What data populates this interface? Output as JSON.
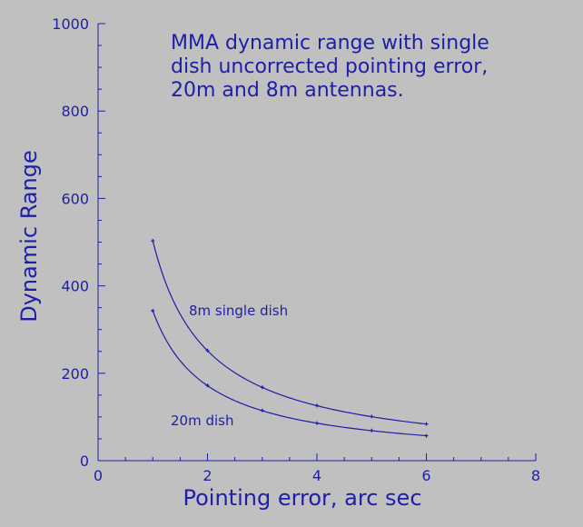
{
  "chart_data": {
    "type": "line",
    "title_lines": [
      "MMA dynamic range with single",
      "dish uncorrected pointing error,",
      "20m and 8m antennas."
    ],
    "xlabel": "Pointing error, arc sec",
    "ylabel": "Dynamic Range",
    "xlim": [
      0,
      8
    ],
    "ylim": [
      0,
      1000
    ],
    "x_ticks": [
      0,
      2,
      4,
      6,
      8
    ],
    "y_ticks": [
      0,
      200,
      400,
      600,
      800,
      1000
    ],
    "grid": false,
    "legend": "none",
    "line_color": "#1e1ea8",
    "series": [
      {
        "name": "8m single dish",
        "x": [
          1,
          2,
          3,
          4,
          5,
          6
        ],
        "values": [
          503,
          252,
          168,
          126,
          101,
          84
        ]
      },
      {
        "name": "20m dish",
        "x": [
          1,
          2,
          3,
          4,
          5,
          6
        ],
        "values": [
          343,
          172,
          115,
          86,
          69,
          57
        ]
      }
    ]
  }
}
